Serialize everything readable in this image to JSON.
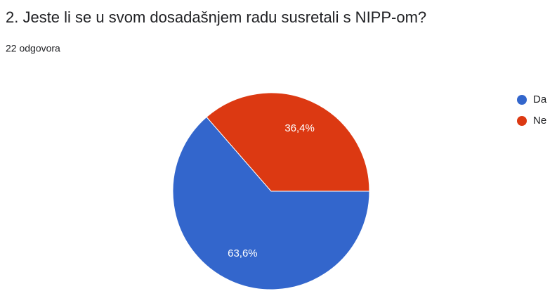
{
  "chart_data": {
    "type": "pie",
    "title": "2. Jeste li se u svom dosadašnjem radu susretali s NIPP-om?",
    "subtitle": "22 odgovora",
    "categories": [
      "Da",
      "Ne"
    ],
    "values": [
      63.6,
      36.4
    ],
    "value_labels": [
      "63,6%",
      "36,4%"
    ],
    "colors": [
      "#3366cc",
      "#dc3912"
    ],
    "legend": "right"
  }
}
